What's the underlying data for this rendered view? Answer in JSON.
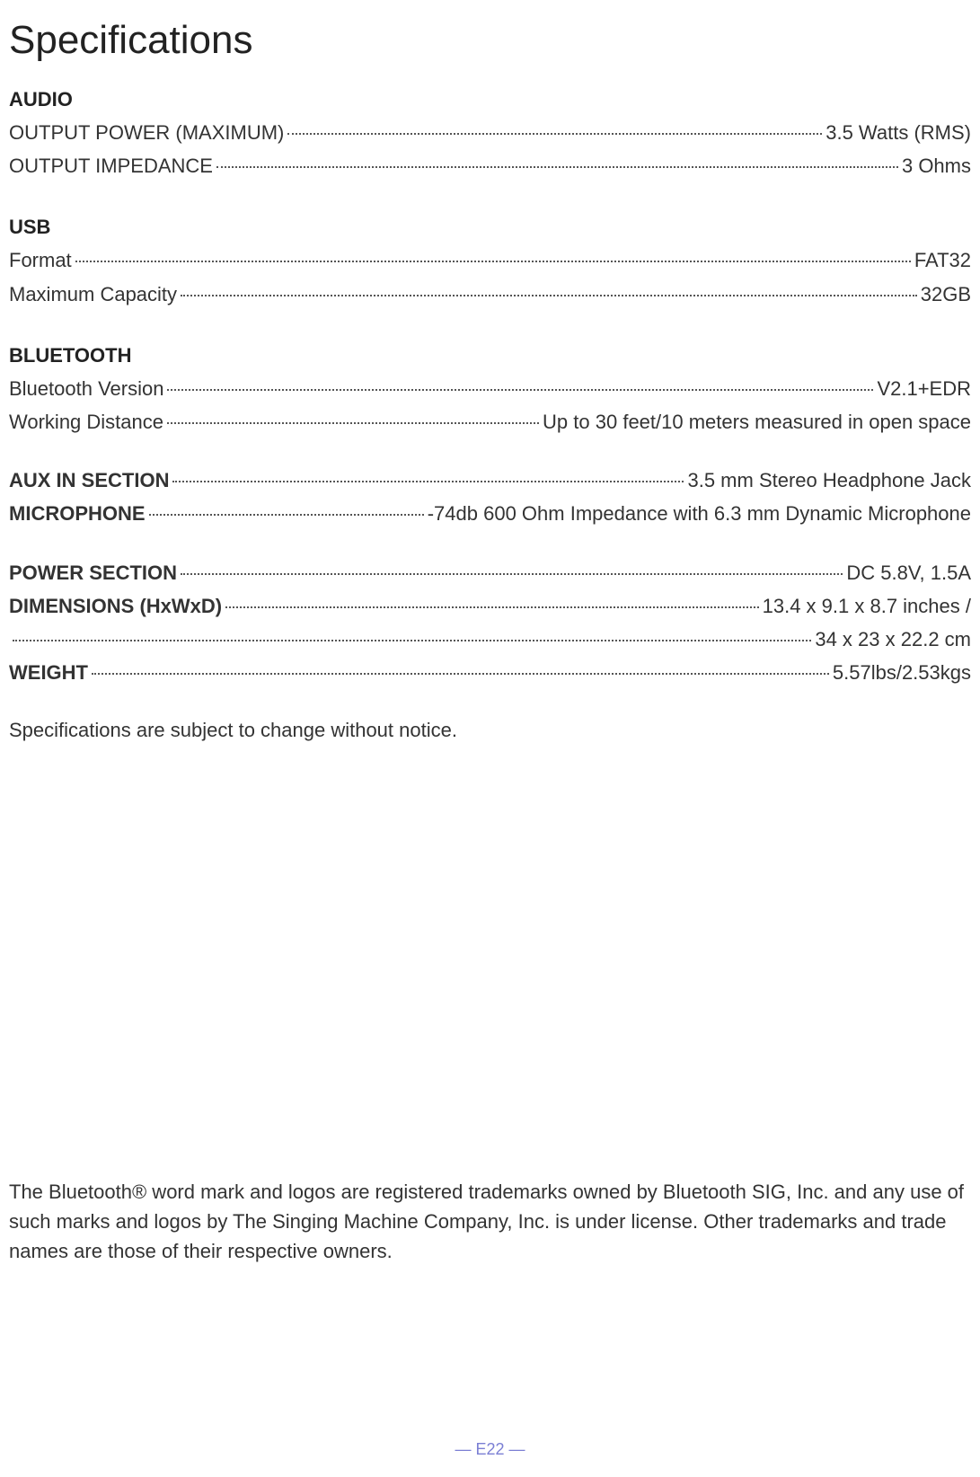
{
  "title": "Specifications",
  "sections": [
    {
      "header": "AUDIO",
      "rows": [
        {
          "label": "OUTPUT POWER (MAXIMUM)",
          "value": "3.5 Watts (RMS)",
          "boldLabel": false
        },
        {
          "label": "OUTPUT IMPEDANCE",
          "value": "3 Ohms",
          "boldLabel": false
        }
      ]
    },
    {
      "header": "USB",
      "rows": [
        {
          "label": "Format",
          "value": "FAT32",
          "boldLabel": false
        },
        {
          "label": "Maximum Capacity",
          "value": "32GB",
          "boldLabel": false
        }
      ]
    },
    {
      "header": "BLUETOOTH",
      "rows": [
        {
          "label": "Bluetooth Version",
          "value": "V2.1+EDR",
          "boldLabel": false
        },
        {
          "label": "Working Distance",
          "value": "Up to 30 feet/10 meters measured in open space",
          "boldLabel": false
        }
      ]
    },
    {
      "header": null,
      "rows": [
        {
          "label": "AUX IN SECTION",
          "value": "3.5 mm Stereo Headphone Jack",
          "boldLabel": true
        },
        {
          "label": "MICROPHONE",
          "value": "-74db 600 Ohm Impedance with 6.3 mm Dynamic Microphone",
          "boldLabel": true
        }
      ]
    },
    {
      "header": null,
      "rows": [
        {
          "label": "POWER SECTION",
          "value": "DC 5.8V, 1.5A",
          "boldLabel": true
        },
        {
          "label": "DIMENSIONS (HxWxD)",
          "value": "13.4 x 9.1 x 8.7 inches /",
          "boldLabel": true
        },
        {
          "label": "",
          "value": "34 x 23 x 22.2 cm",
          "boldLabel": false
        },
        {
          "label": "WEIGHT",
          "value": "5.57lbs/2.53kgs",
          "boldLabel": true
        }
      ]
    }
  ],
  "notice": "Specifications are subject to change without notice.",
  "trademark": "The Bluetooth® word mark and logos are registered trademarks owned by Bluetooth SIG, Inc. and any use of such marks and logos by The Singing Machine Company, Inc. is under license. Other trademarks and trade names are those of their respective owners.",
  "footer": "— E22 —"
}
